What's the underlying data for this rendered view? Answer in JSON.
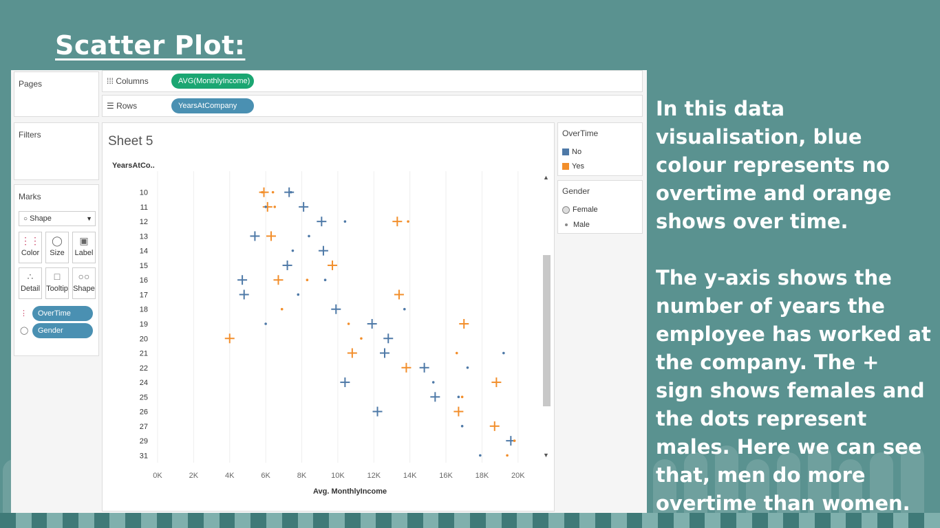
{
  "slide": {
    "title": " Scatter Plot:",
    "paragraphs": [
      "In this data visualisation, blue colour represents no overtime and orange shows over time.",
      "The y-axis shows the number of years the employee has worked at the company. The + sign shows females and the dots represent males. Here we can see that, men do more overtime than women."
    ]
  },
  "tableau": {
    "pages_label": "Pages",
    "filters_label": "Filters",
    "marks": {
      "label": "Marks",
      "type_value": "Shape",
      "buttons": [
        "Color",
        "Size",
        "Label",
        "Detail",
        "Tooltip",
        "Shape"
      ],
      "pills": [
        "OverTime",
        "Gender"
      ]
    },
    "columns": {
      "label": "Columns",
      "pill": "AVG(MonthlyIncome)"
    },
    "rows": {
      "label": "Rows",
      "pill": "YearsAtCompany"
    },
    "sheet_title": "Sheet 5",
    "legend_overtime": {
      "title": "OverTime",
      "items": [
        "No",
        "Yes"
      ]
    },
    "legend_gender": {
      "title": "Gender",
      "items": [
        "Female",
        "Male"
      ]
    },
    "colors": {
      "no": "#4e79a7",
      "yes": "#f28e2b",
      "pill_green": "#1ba672",
      "pill_blue": "#4a90b2"
    }
  },
  "chart_data": {
    "type": "scatter",
    "xlabel": "Avg. MonthlyIncome",
    "ylabel": "YearsAtCo..",
    "x_ticks": [
      "0K",
      "2K",
      "4K",
      "6K",
      "8K",
      "10K",
      "12K",
      "14K",
      "16K",
      "18K",
      "20K"
    ],
    "xlim": [
      0,
      21000
    ],
    "y_categories": [
      "10",
      "11",
      "12",
      "13",
      "14",
      "15",
      "16",
      "17",
      "18",
      "19",
      "20",
      "21",
      "22",
      "24",
      "25",
      "26",
      "27",
      "29",
      "31"
    ],
    "series": [
      {
        "overtime": "No",
        "gender": "Female",
        "points": [
          {
            "x": 7300,
            "y": "10"
          },
          {
            "x": 8100,
            "y": "11"
          },
          {
            "x": 9100,
            "y": "12"
          },
          {
            "x": 5400,
            "y": "13"
          },
          {
            "x": 9200,
            "y": "14"
          },
          {
            "x": 7200,
            "y": "15"
          },
          {
            "x": 4700,
            "y": "16"
          },
          {
            "x": 4800,
            "y": "17"
          },
          {
            "x": 9900,
            "y": "18"
          },
          {
            "x": 11900,
            "y": "19"
          },
          {
            "x": 12800,
            "y": "20"
          },
          {
            "x": 12600,
            "y": "21"
          },
          {
            "x": 14800,
            "y": "22"
          },
          {
            "x": 10400,
            "y": "24"
          },
          {
            "x": 15400,
            "y": "25"
          },
          {
            "x": 12200,
            "y": "26"
          },
          {
            "x": 19600,
            "y": "29"
          }
        ]
      },
      {
        "overtime": "Yes",
        "gender": "Female",
        "points": [
          {
            "x": 5900,
            "y": "10"
          },
          {
            "x": 6100,
            "y": "11"
          },
          {
            "x": 13300,
            "y": "12"
          },
          {
            "x": 6300,
            "y": "13"
          },
          {
            "x": 9700,
            "y": "15"
          },
          {
            "x": 6700,
            "y": "16"
          },
          {
            "x": 13400,
            "y": "17"
          },
          {
            "x": 17000,
            "y": "19"
          },
          {
            "x": 4000,
            "y": "20"
          },
          {
            "x": 10800,
            "y": "21"
          },
          {
            "x": 13800,
            "y": "22"
          },
          {
            "x": 18800,
            "y": "24"
          },
          {
            "x": 16700,
            "y": "26"
          },
          {
            "x": 18700,
            "y": "27"
          }
        ]
      },
      {
        "overtime": "No",
        "gender": "Male",
        "points": [
          {
            "x": 7400,
            "y": "10"
          },
          {
            "x": 6000,
            "y": "11"
          },
          {
            "x": 10400,
            "y": "12"
          },
          {
            "x": 8400,
            "y": "13"
          },
          {
            "x": 7500,
            "y": "14"
          },
          {
            "x": 9300,
            "y": "16"
          },
          {
            "x": 7800,
            "y": "17"
          },
          {
            "x": 13700,
            "y": "18"
          },
          {
            "x": 6000,
            "y": "19"
          },
          {
            "x": 17200,
            "y": "22"
          },
          {
            "x": 19200,
            "y": "21"
          },
          {
            "x": 15300,
            "y": "24"
          },
          {
            "x": 16700,
            "y": "25"
          },
          {
            "x": 16900,
            "y": "27"
          },
          {
            "x": 17900,
            "y": "31"
          }
        ]
      },
      {
        "overtime": "Yes",
        "gender": "Male",
        "points": [
          {
            "x": 5800,
            "y": "10"
          },
          {
            "x": 6400,
            "y": "10"
          },
          {
            "x": 6500,
            "y": "11"
          },
          {
            "x": 13900,
            "y": "12"
          },
          {
            "x": 8300,
            "y": "16"
          },
          {
            "x": 6900,
            "y": "18"
          },
          {
            "x": 10600,
            "y": "19"
          },
          {
            "x": 11300,
            "y": "20"
          },
          {
            "x": 16600,
            "y": "21"
          },
          {
            "x": 16900,
            "y": "25"
          },
          {
            "x": 19800,
            "y": "29"
          },
          {
            "x": 19400,
            "y": "31"
          }
        ]
      }
    ],
    "grid": "vertical"
  }
}
